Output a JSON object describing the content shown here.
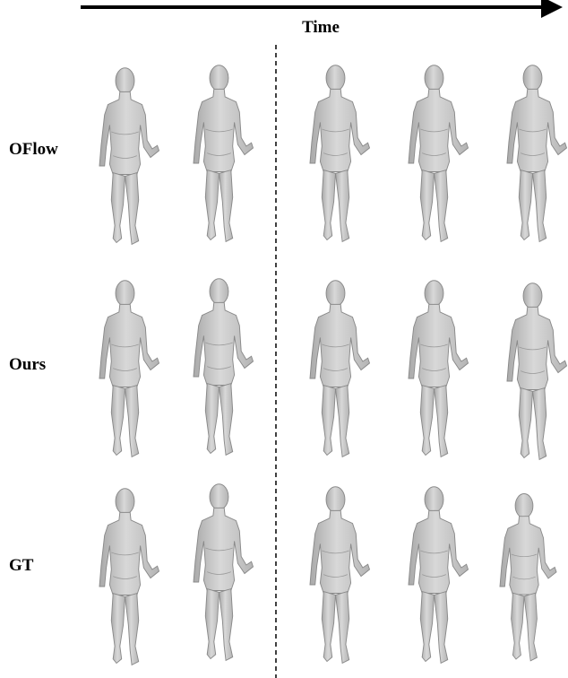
{
  "header": {
    "axis_label": "Time"
  },
  "rows": [
    {
      "label": "OFlow"
    },
    {
      "label": "Ours"
    },
    {
      "label": "GT"
    }
  ]
}
